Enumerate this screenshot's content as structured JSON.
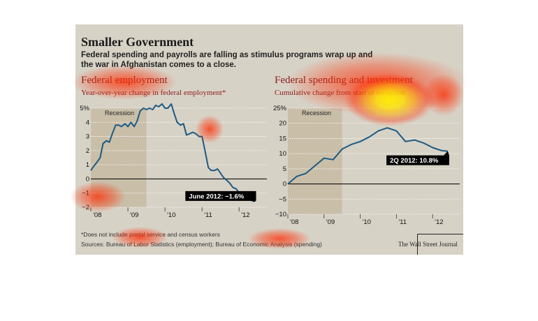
{
  "header": {
    "title": "Smaller Government",
    "subtitle": "Federal spending and payrolls are falling as stimulus programs wrap up and the war in Afghanistan comes to a close."
  },
  "footer": {
    "footnote": "*Does not include postal service and census workers",
    "source": "Sources: Bureau of Labor Statistics (employment); Bureau of Economic Analysis (spending)",
    "credit": "The Wall Street Journal"
  },
  "colors": {
    "panel_bg": "#d7d2c6",
    "recession_band": "#c9bfa9",
    "line": "#1d5a82",
    "title_red": "#8a1c1c",
    "label_bg": "#000000",
    "heat_red": "#ff2a00",
    "heat_yellow": "#fff000"
  },
  "chart_data": [
    {
      "type": "line",
      "title": "Federal employment",
      "subtitle": "Year-over-year change in federal employment*",
      "unit_suffix": "%",
      "ylim": [
        -2,
        5
      ],
      "yticks": [
        5,
        4,
        3,
        2,
        1,
        0,
        -1,
        -2
      ],
      "yticks_label": [
        "5%",
        "4",
        "3",
        "2",
        "1",
        "0",
        "−1",
        "−2"
      ],
      "xlim": [
        2008.0,
        2012.75
      ],
      "xticks": [
        2008,
        2009,
        2010,
        2011,
        2012
      ],
      "xticks_label": [
        "'08",
        "'09",
        "'10",
        "'11",
        "'12"
      ],
      "recession": {
        "label": "Recession",
        "start": 2008.0,
        "end": 2009.5
      },
      "annotation": {
        "label": "June 2012: −1.6%",
        "x": 2012.42,
        "y": -1.6
      },
      "series": [
        {
          "x": [
            2008.0,
            2008.08,
            2008.17,
            2008.25,
            2008.33,
            2008.42,
            2008.5,
            2008.58,
            2008.67,
            2008.75,
            2008.83,
            2008.92,
            2009.0,
            2009.08,
            2009.17,
            2009.25,
            2009.33,
            2009.42,
            2009.5,
            2009.58,
            2009.67,
            2009.75,
            2009.83,
            2009.92,
            2010.0,
            2010.08,
            2010.17,
            2010.25,
            2010.33,
            2010.42,
            2010.5,
            2010.58,
            2010.67,
            2010.75,
            2010.83,
            2010.92,
            2011.0,
            2011.08,
            2011.17,
            2011.25,
            2011.33,
            2011.42,
            2011.5,
            2011.58,
            2011.67,
            2011.75,
            2011.83,
            2011.92,
            2012.0,
            2012.08,
            2012.17,
            2012.25,
            2012.33,
            2012.42
          ],
          "y": [
            0.6,
            0.9,
            1.2,
            1.5,
            2.5,
            2.7,
            2.6,
            3.2,
            3.8,
            3.8,
            3.7,
            3.9,
            3.7,
            4.0,
            3.7,
            4.1,
            4.8,
            5.0,
            4.9,
            5.0,
            4.9,
            5.2,
            5.1,
            5.3,
            5.0,
            5.0,
            5.3,
            4.6,
            4.0,
            3.8,
            3.9,
            3.1,
            3.2,
            3.3,
            3.2,
            3.0,
            3.0,
            2.0,
            0.8,
            0.6,
            0.6,
            0.7,
            0.4,
            0.1,
            -0.1,
            -0.3,
            -0.6,
            -0.7,
            -1.0,
            -1.2,
            -1.3,
            -1.4,
            -1.5,
            -1.6
          ]
        }
      ]
    },
    {
      "type": "line",
      "title": "Federal spending and investment",
      "subtitle": "Cumulative change from start of recession",
      "unit_suffix": "%",
      "ylim": [
        -10,
        25
      ],
      "yticks": [
        25,
        20,
        15,
        10,
        5,
        0,
        -5,
        -10
      ],
      "yticks_label": [
        "25%",
        "20",
        "15",
        "10",
        "5",
        "0",
        "−5",
        "−10"
      ],
      "xlim": [
        2008.0,
        2012.75
      ],
      "xticks": [
        2008,
        2009,
        2010,
        2011,
        2012
      ],
      "xticks_label": [
        "'08",
        "'09",
        "'10",
        "'11",
        "'12"
      ],
      "recession": {
        "label": "Recession",
        "start": 2008.0,
        "end": 2009.5
      },
      "annotation": {
        "label": "2Q 2012: 10.8%",
        "x": 2012.42,
        "y": 10.8
      },
      "series": [
        {
          "x": [
            2008.0,
            2008.25,
            2008.5,
            2008.75,
            2009.0,
            2009.25,
            2009.5,
            2009.75,
            2010.0,
            2010.25,
            2010.5,
            2010.75,
            2011.0,
            2011.25,
            2011.5,
            2011.75,
            2012.0,
            2012.25,
            2012.42
          ],
          "y": [
            0.0,
            2.5,
            3.5,
            6.0,
            8.5,
            8.0,
            11.5,
            13.0,
            14.0,
            15.5,
            17.5,
            18.5,
            17.5,
            14.0,
            14.5,
            13.5,
            12.0,
            11.0,
            10.8
          ]
        }
      ]
    }
  ]
}
